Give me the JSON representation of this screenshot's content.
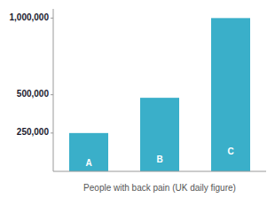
{
  "chart_data": {
    "type": "bar",
    "xlabel": "People with back pain (UK daily figure)",
    "categories": [
      "A",
      "B",
      "C"
    ],
    "values": [
      250000,
      480000,
      1000000
    ],
    "color": "#3aafc9",
    "ylim": [
      0,
      1060000
    ],
    "yticks": [
      {
        "value": 250000,
        "label": "250,000"
      },
      {
        "value": 500000,
        "label": "500,000"
      },
      {
        "value": 1000000,
        "label": "1,000,000"
      }
    ],
    "grid": false,
    "tick_labels": "y"
  }
}
